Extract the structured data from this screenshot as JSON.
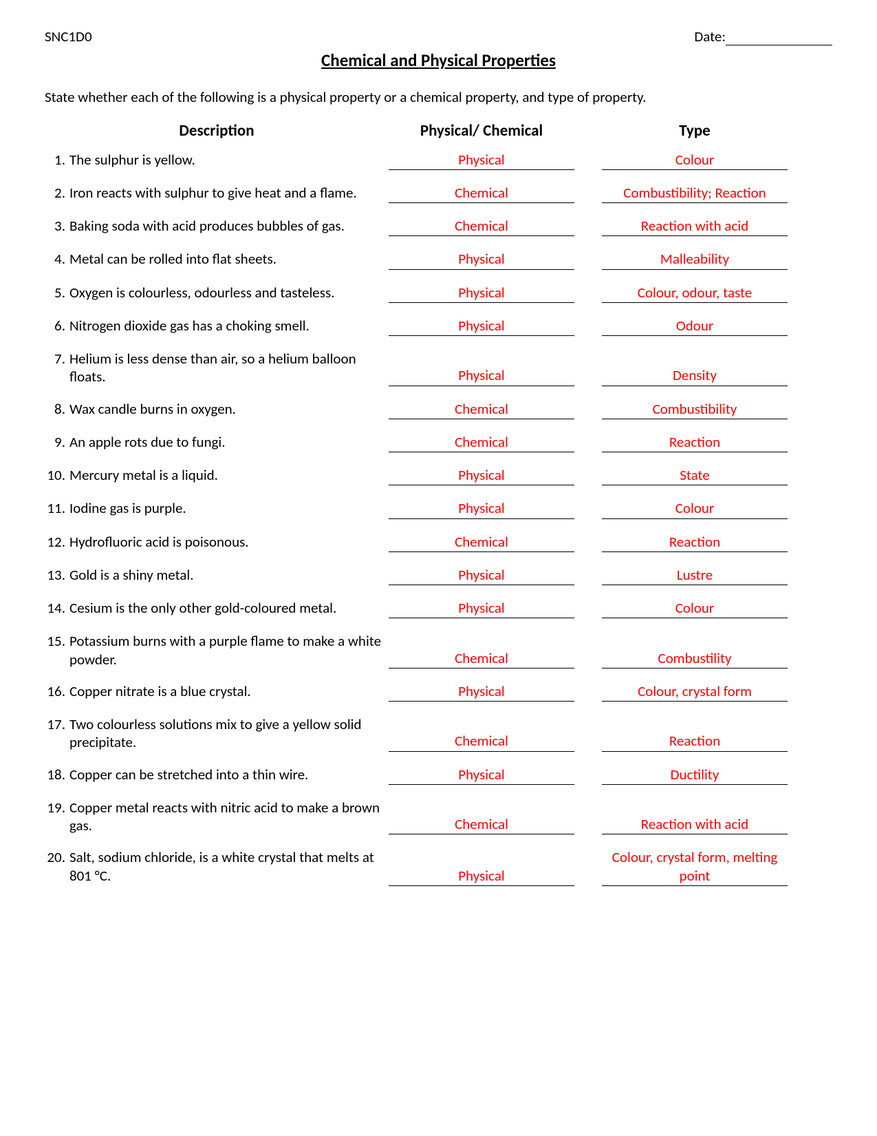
{
  "course_code": "SNC1D0",
  "date_label": "Date:",
  "title": "Chemical and Physical Properties",
  "instructions": "State whether each of the following is a physical property or a chemical property, and type of property.",
  "headers": {
    "description": "Description",
    "phys_chem": "Physical/ Chemical",
    "type": "Type"
  },
  "answer_color": "#ff0000",
  "text_color": "#000000",
  "background_color": "#ffffff",
  "font_family": "Calibri",
  "title_fontsize": 25,
  "body_fontsize": 21,
  "header_fontsize": 23,
  "rows": [
    {
      "n": "1.",
      "desc": "The sulphur is yellow.",
      "pc": "Physical",
      "type": "Colour"
    },
    {
      "n": "2.",
      "desc": "Iron reacts with sulphur to give heat and a flame.",
      "pc": "Chemical",
      "type": "Combustibility; Reaction"
    },
    {
      "n": "3.",
      "desc": "Baking soda with acid produces bubbles of gas.",
      "pc": "Chemical",
      "type": "Reaction with acid"
    },
    {
      "n": "4.",
      "desc": "Metal can be rolled into flat sheets.",
      "pc": "Physical",
      "type": "Malleability"
    },
    {
      "n": "5.",
      "desc": "Oxygen is colourless, odourless and tasteless.",
      "pc": "Physical",
      "type": "Colour, odour, taste"
    },
    {
      "n": "6.",
      "desc": "Nitrogen dioxide gas has a choking smell.",
      "pc": "Physical",
      "type": "Odour"
    },
    {
      "n": "7.",
      "desc": "Helium is less dense than air, so a helium balloon floats.",
      "pc": "Physical",
      "type": "Density"
    },
    {
      "n": "8.",
      "desc": "Wax candle burns in oxygen.",
      "pc": "Chemical",
      "type": "Combustibility"
    },
    {
      "n": "9.",
      "desc": "An apple rots due to fungi.",
      "pc": "Chemical",
      "type": "Reaction"
    },
    {
      "n": "10.",
      "desc": "Mercury metal is a liquid.",
      "pc": "Physical",
      "type": "State"
    },
    {
      "n": "11.",
      "desc": "Iodine gas is purple.",
      "pc": "Physical",
      "type": "Colour"
    },
    {
      "n": "12.",
      "desc": "Hydrofluoric acid is poisonous.",
      "pc": "Chemical",
      "type": "Reaction"
    },
    {
      "n": "13.",
      "desc": "Gold is a shiny metal.",
      "pc": "Physical",
      "type": "Lustre"
    },
    {
      "n": "14.",
      "desc": "Cesium is the only other gold-coloured metal.",
      "pc": "Physical",
      "type": "Colour"
    },
    {
      "n": "15.",
      "desc": "Potassium burns with a purple flame to make a white powder.",
      "pc": "Chemical",
      "type": "Combustility"
    },
    {
      "n": "16.",
      "desc": "Copper nitrate is a blue crystal.",
      "pc": "Physical",
      "type": "Colour, crystal form"
    },
    {
      "n": "17.",
      "desc": "Two colourless solutions mix to give a yellow solid precipitate.",
      "pc": "Chemical",
      "type": "Reaction"
    },
    {
      "n": "18.",
      "desc": "Copper can be stretched into a thin wire.",
      "pc": "Physical",
      "type": "Ductility"
    },
    {
      "n": "19.",
      "desc": "Copper metal reacts with nitric acid to make a brown gas.",
      "pc": "Chemical",
      "type": "Reaction with acid"
    },
    {
      "n": "20.",
      "desc": "Salt, sodium chloride, is a white crystal that melts at 801 °C.",
      "pc": "Physical",
      "type": "Colour, crystal form, melting point"
    }
  ]
}
